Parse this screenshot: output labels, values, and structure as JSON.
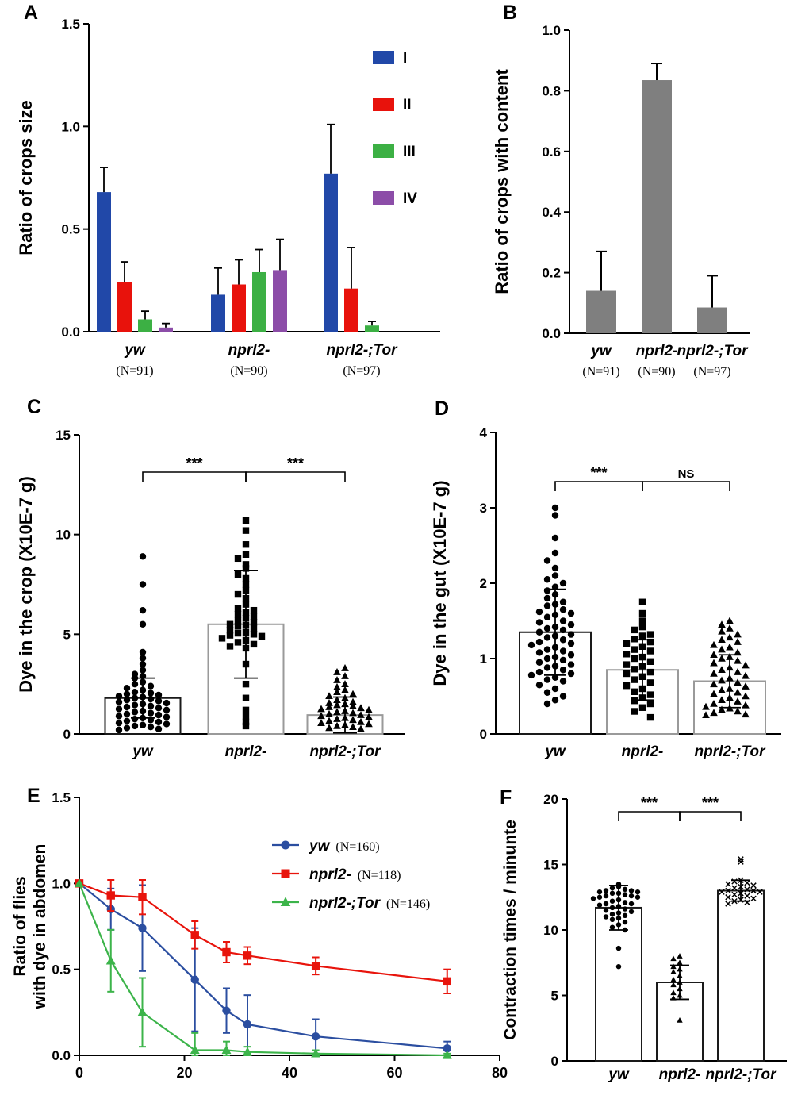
{
  "chart_data": [
    {
      "panel": "A",
      "type": "grouped_bar",
      "ylabel": "Ratio of  crops size",
      "ylim": [
        0,
        1.5
      ],
      "yticks": [
        "0.0",
        "0.5",
        "1.0",
        "1.5"
      ],
      "categories": [
        "yw",
        "nprl2-",
        "nprl2-;Tor"
      ],
      "n_labels": [
        "(N=91)",
        "(N=90)",
        "(N=97)"
      ],
      "legend_position": "top-right",
      "series": [
        {
          "name": "I",
          "color": "#2148A8",
          "values": [
            0.68,
            0.18,
            0.77
          ],
          "errors": [
            0.12,
            0.13,
            0.24
          ]
        },
        {
          "name": "II",
          "color": "#E8120C",
          "values": [
            0.24,
            0.23,
            0.21
          ],
          "errors": [
            0.1,
            0.12,
            0.2
          ]
        },
        {
          "name": "III",
          "color": "#3CB044",
          "values": [
            0.06,
            0.29,
            0.03
          ],
          "errors": [
            0.04,
            0.11,
            0.02
          ]
        },
        {
          "name": "IV",
          "color": "#8C4DA8",
          "values": [
            0.02,
            0.3,
            0.0
          ],
          "errors": [
            0.02,
            0.15,
            0.0
          ]
        }
      ]
    },
    {
      "panel": "B",
      "type": "bar",
      "ylabel": "Ratio of  crops with content",
      "ylim": [
        0,
        1.0
      ],
      "yticks": [
        "0.0",
        "0.2",
        "0.4",
        "0.6",
        "0.8",
        "1.0"
      ],
      "categories": [
        "yw",
        "nprl2-",
        "nprl2-;Tor"
      ],
      "n_labels": [
        "(N=91)",
        "(N=90)",
        "(N=97)"
      ],
      "bar_color": "#7F7F7F",
      "values": [
        0.14,
        0.835,
        0.085
      ],
      "errors": [
        0.13,
        0.055,
        0.105
      ]
    },
    {
      "panel": "C",
      "type": "scatter_bar",
      "ylabel": "Dye in the crop (X10E-7 g)",
      "ylim": [
        0,
        15
      ],
      "yticks": [
        "0",
        "5",
        "10",
        "15"
      ],
      "categories": [
        "yw",
        "nprl2-",
        "nprl2-;Tor"
      ],
      "markers": [
        "circle",
        "square",
        "triangle"
      ],
      "bar_means": [
        1.8,
        5.5,
        0.95
      ],
      "bar_sd": [
        1.0,
        2.7,
        0.9
      ],
      "bar_outline": [
        "#1a1a1a",
        "#9a9a9a",
        "#9a9a9a"
      ],
      "significance": [
        {
          "from": 0,
          "to": 1,
          "label": "***"
        },
        {
          "from": 1,
          "to": 2,
          "label": "***"
        }
      ],
      "points": [
        [
          8.9,
          7.5,
          6.2,
          5.5,
          4.1,
          3.8,
          3.5,
          3.2,
          3.0,
          2.9,
          2.8,
          2.6,
          2.5,
          2.4,
          2.3,
          2.2,
          2.1,
          2.05,
          2.0,
          1.95,
          1.9,
          1.85,
          1.8,
          1.75,
          1.7,
          1.65,
          1.6,
          1.55,
          1.5,
          1.45,
          1.4,
          1.35,
          1.3,
          1.25,
          1.2,
          1.15,
          1.1,
          1.05,
          1.0,
          0.95,
          0.9,
          0.85,
          0.8,
          0.75,
          0.7,
          0.65,
          0.6,
          0.55,
          0.5,
          0.45,
          0.4,
          0.35,
          0.3,
          0.25,
          0.2
        ],
        [
          10.7,
          10.2,
          9.5,
          9.0,
          8.8,
          8.5,
          8.3,
          8.0,
          7.8,
          7.5,
          7.2,
          7.0,
          6.8,
          6.5,
          6.3,
          6.2,
          6.1,
          6.0,
          5.9,
          5.8,
          5.7,
          5.6,
          5.5,
          5.45,
          5.4,
          5.3,
          5.2,
          5.1,
          5.05,
          5.0,
          4.95,
          4.9,
          4.8,
          4.7,
          4.6,
          4.5,
          4.4,
          4.3,
          3.5,
          2.5,
          1.8,
          1.2,
          0.9,
          0.6,
          0.4
        ],
        [
          3.3,
          3.1,
          2.9,
          2.7,
          2.5,
          2.35,
          2.2,
          2.1,
          2.0,
          1.9,
          1.8,
          1.7,
          1.6,
          1.55,
          1.5,
          1.45,
          1.4,
          1.35,
          1.3,
          1.25,
          1.2,
          1.15,
          1.1,
          1.05,
          1.0,
          0.95,
          0.9,
          0.85,
          0.8,
          0.75,
          0.7,
          0.65,
          0.6,
          0.55,
          0.5,
          0.45,
          0.4,
          0.35,
          0.3,
          0.25
        ]
      ]
    },
    {
      "panel": "D",
      "type": "scatter_bar",
      "ylabel": "Dye in the gut (X10E-7 g)",
      "ylim": [
        0,
        4
      ],
      "yticks": [
        "0",
        "1",
        "2",
        "3",
        "4"
      ],
      "categories": [
        "yw",
        "nprl2-",
        "nprl2-;Tor"
      ],
      "markers": [
        "circle",
        "square",
        "triangle"
      ],
      "bar_means": [
        1.35,
        0.85,
        0.7
      ],
      "bar_sd": [
        0.57,
        0.4,
        0.35
      ],
      "bar_outline": [
        "#1a1a1a",
        "#9a9a9a",
        "#9a9a9a"
      ],
      "significance": [
        {
          "from": 0,
          "to": 1,
          "label": "***"
        },
        {
          "from": 1,
          "to": 2,
          "label": "NS"
        }
      ],
      "points": [
        [
          3.0,
          2.9,
          2.6,
          2.4,
          2.3,
          2.2,
          2.1,
          2.05,
          2.0,
          1.95,
          1.9,
          1.85,
          1.8,
          1.75,
          1.72,
          1.7,
          1.65,
          1.62,
          1.6,
          1.58,
          1.55,
          1.5,
          1.48,
          1.45,
          1.42,
          1.4,
          1.38,
          1.35,
          1.32,
          1.3,
          1.28,
          1.25,
          1.22,
          1.2,
          1.18,
          1.15,
          1.12,
          1.1,
          1.08,
          1.05,
          1.02,
          1.0,
          0.98,
          0.95,
          0.92,
          0.9,
          0.88,
          0.85,
          0.82,
          0.8,
          0.78,
          0.75,
          0.72,
          0.7,
          0.65,
          0.6,
          0.55,
          0.5,
          0.45,
          0.4
        ],
        [
          1.75,
          1.6,
          1.5,
          1.42,
          1.38,
          1.32,
          1.3,
          1.26,
          1.22,
          1.2,
          1.16,
          1.12,
          1.1,
          1.06,
          1.02,
          1.0,
          0.96,
          0.92,
          0.9,
          0.86,
          0.82,
          0.8,
          0.76,
          0.72,
          0.68,
          0.64,
          0.6,
          0.56,
          0.52,
          0.48,
          0.44,
          0.4,
          0.35,
          0.3,
          0.22
        ],
        [
          1.5,
          1.45,
          1.4,
          1.36,
          1.32,
          1.28,
          1.25,
          1.22,
          1.18,
          1.15,
          1.12,
          1.08,
          1.05,
          1.02,
          1.0,
          0.97,
          0.94,
          0.91,
          0.88,
          0.85,
          0.82,
          0.8,
          0.77,
          0.74,
          0.71,
          0.68,
          0.66,
          0.63,
          0.6,
          0.58,
          0.55,
          0.53,
          0.5,
          0.48,
          0.45,
          0.43,
          0.4,
          0.38,
          0.36,
          0.34,
          0.32,
          0.3,
          0.28,
          0.26,
          0.25
        ]
      ]
    },
    {
      "panel": "E",
      "type": "line",
      "ylabel": [
        "Ratio of flies",
        "with dye in abdomen"
      ],
      "ylim": [
        0,
        1.5
      ],
      "yticks": [
        "0.0",
        "0.5",
        "1.0",
        "1.5"
      ],
      "xlim": [
        0,
        80
      ],
      "xticks": [
        "0",
        "20",
        "40",
        "60",
        "80"
      ],
      "legend_position": "top-right",
      "series": [
        {
          "name": "yw",
          "n_label": "(N=160)",
          "color": "#2B4EA0",
          "marker": "circle",
          "x": [
            0,
            6,
            12,
            22,
            28,
            32,
            45,
            70
          ],
          "y": [
            1.0,
            0.85,
            0.74,
            0.44,
            0.26,
            0.18,
            0.11,
            0.04
          ],
          "err": [
            0,
            0.12,
            0.25,
            0.3,
            0.13,
            0.17,
            0.1,
            0.04
          ]
        },
        {
          "name": "nprl2-",
          "n_label": "(N=118)",
          "color": "#E8140C",
          "marker": "square",
          "x": [
            0,
            6,
            12,
            22,
            28,
            32,
            45,
            70
          ],
          "y": [
            1.0,
            0.93,
            0.92,
            0.7,
            0.6,
            0.58,
            0.52,
            0.43
          ],
          "err": [
            0,
            0.09,
            0.1,
            0.08,
            0.06,
            0.05,
            0.05,
            0.07
          ]
        },
        {
          "name": "nprl2-;Tor",
          "n_label": "(N=146)",
          "color": "#3CB44A",
          "marker": "triangle",
          "x": [
            0,
            6,
            12,
            22,
            28,
            32,
            45,
            70
          ],
          "y": [
            1.0,
            0.55,
            0.25,
            0.03,
            0.03,
            0.02,
            0.01,
            0.0
          ],
          "err": [
            0,
            0.18,
            0.2,
            0.1,
            0.05,
            0.03,
            0.02,
            0.01
          ]
        }
      ]
    },
    {
      "panel": "F",
      "type": "scatter_bar",
      "ylabel": "Contraction times / minunte",
      "ylim": [
        0,
        20
      ],
      "yticks": [
        "0",
        "5",
        "10",
        "15",
        "20"
      ],
      "categories": [
        "yw",
        "nprl2-",
        "nprl2-;Tor"
      ],
      "markers": [
        "circle",
        "triangle",
        "x"
      ],
      "bar_means": [
        11.7,
        6.0,
        13.0
      ],
      "bar_sd": [
        1.7,
        1.3,
        0.8
      ],
      "bar_outline": [
        "#1a1a1a",
        "#1a1a1a",
        "#1a1a1a"
      ],
      "significance": [
        {
          "from": 0,
          "to": 1,
          "label": "***"
        },
        {
          "from": 1,
          "to": 2,
          "label": "***"
        }
      ],
      "points": [
        [
          13.5,
          13.3,
          13.2,
          13.1,
          13.0,
          13.0,
          12.9,
          12.9,
          12.8,
          12.8,
          12.7,
          12.6,
          12.6,
          12.5,
          12.5,
          12.4,
          12.3,
          12.2,
          12.1,
          12.0,
          12.0,
          11.9,
          11.8,
          11.7,
          11.6,
          11.5,
          11.4,
          11.3,
          11.2,
          11.1,
          11.0,
          10.9,
          10.8,
          10.6,
          10.4,
          10.2,
          10.0,
          8.6,
          7.2
        ],
        [
          8.0,
          7.8,
          7.5,
          7.2,
          7.0,
          6.8,
          6.5,
          6.2,
          6.0,
          5.8,
          5.5,
          5.2,
          5.0,
          4.8,
          3.1
        ],
        [
          15.4,
          15.2,
          13.8,
          13.7,
          13.6,
          13.5,
          13.4,
          13.3,
          13.2,
          13.1,
          13.0,
          13.0,
          12.9,
          12.9,
          12.8,
          12.7,
          12.6,
          12.5,
          12.4,
          12.3,
          12.2,
          12.1,
          12.0
        ]
      ]
    }
  ]
}
